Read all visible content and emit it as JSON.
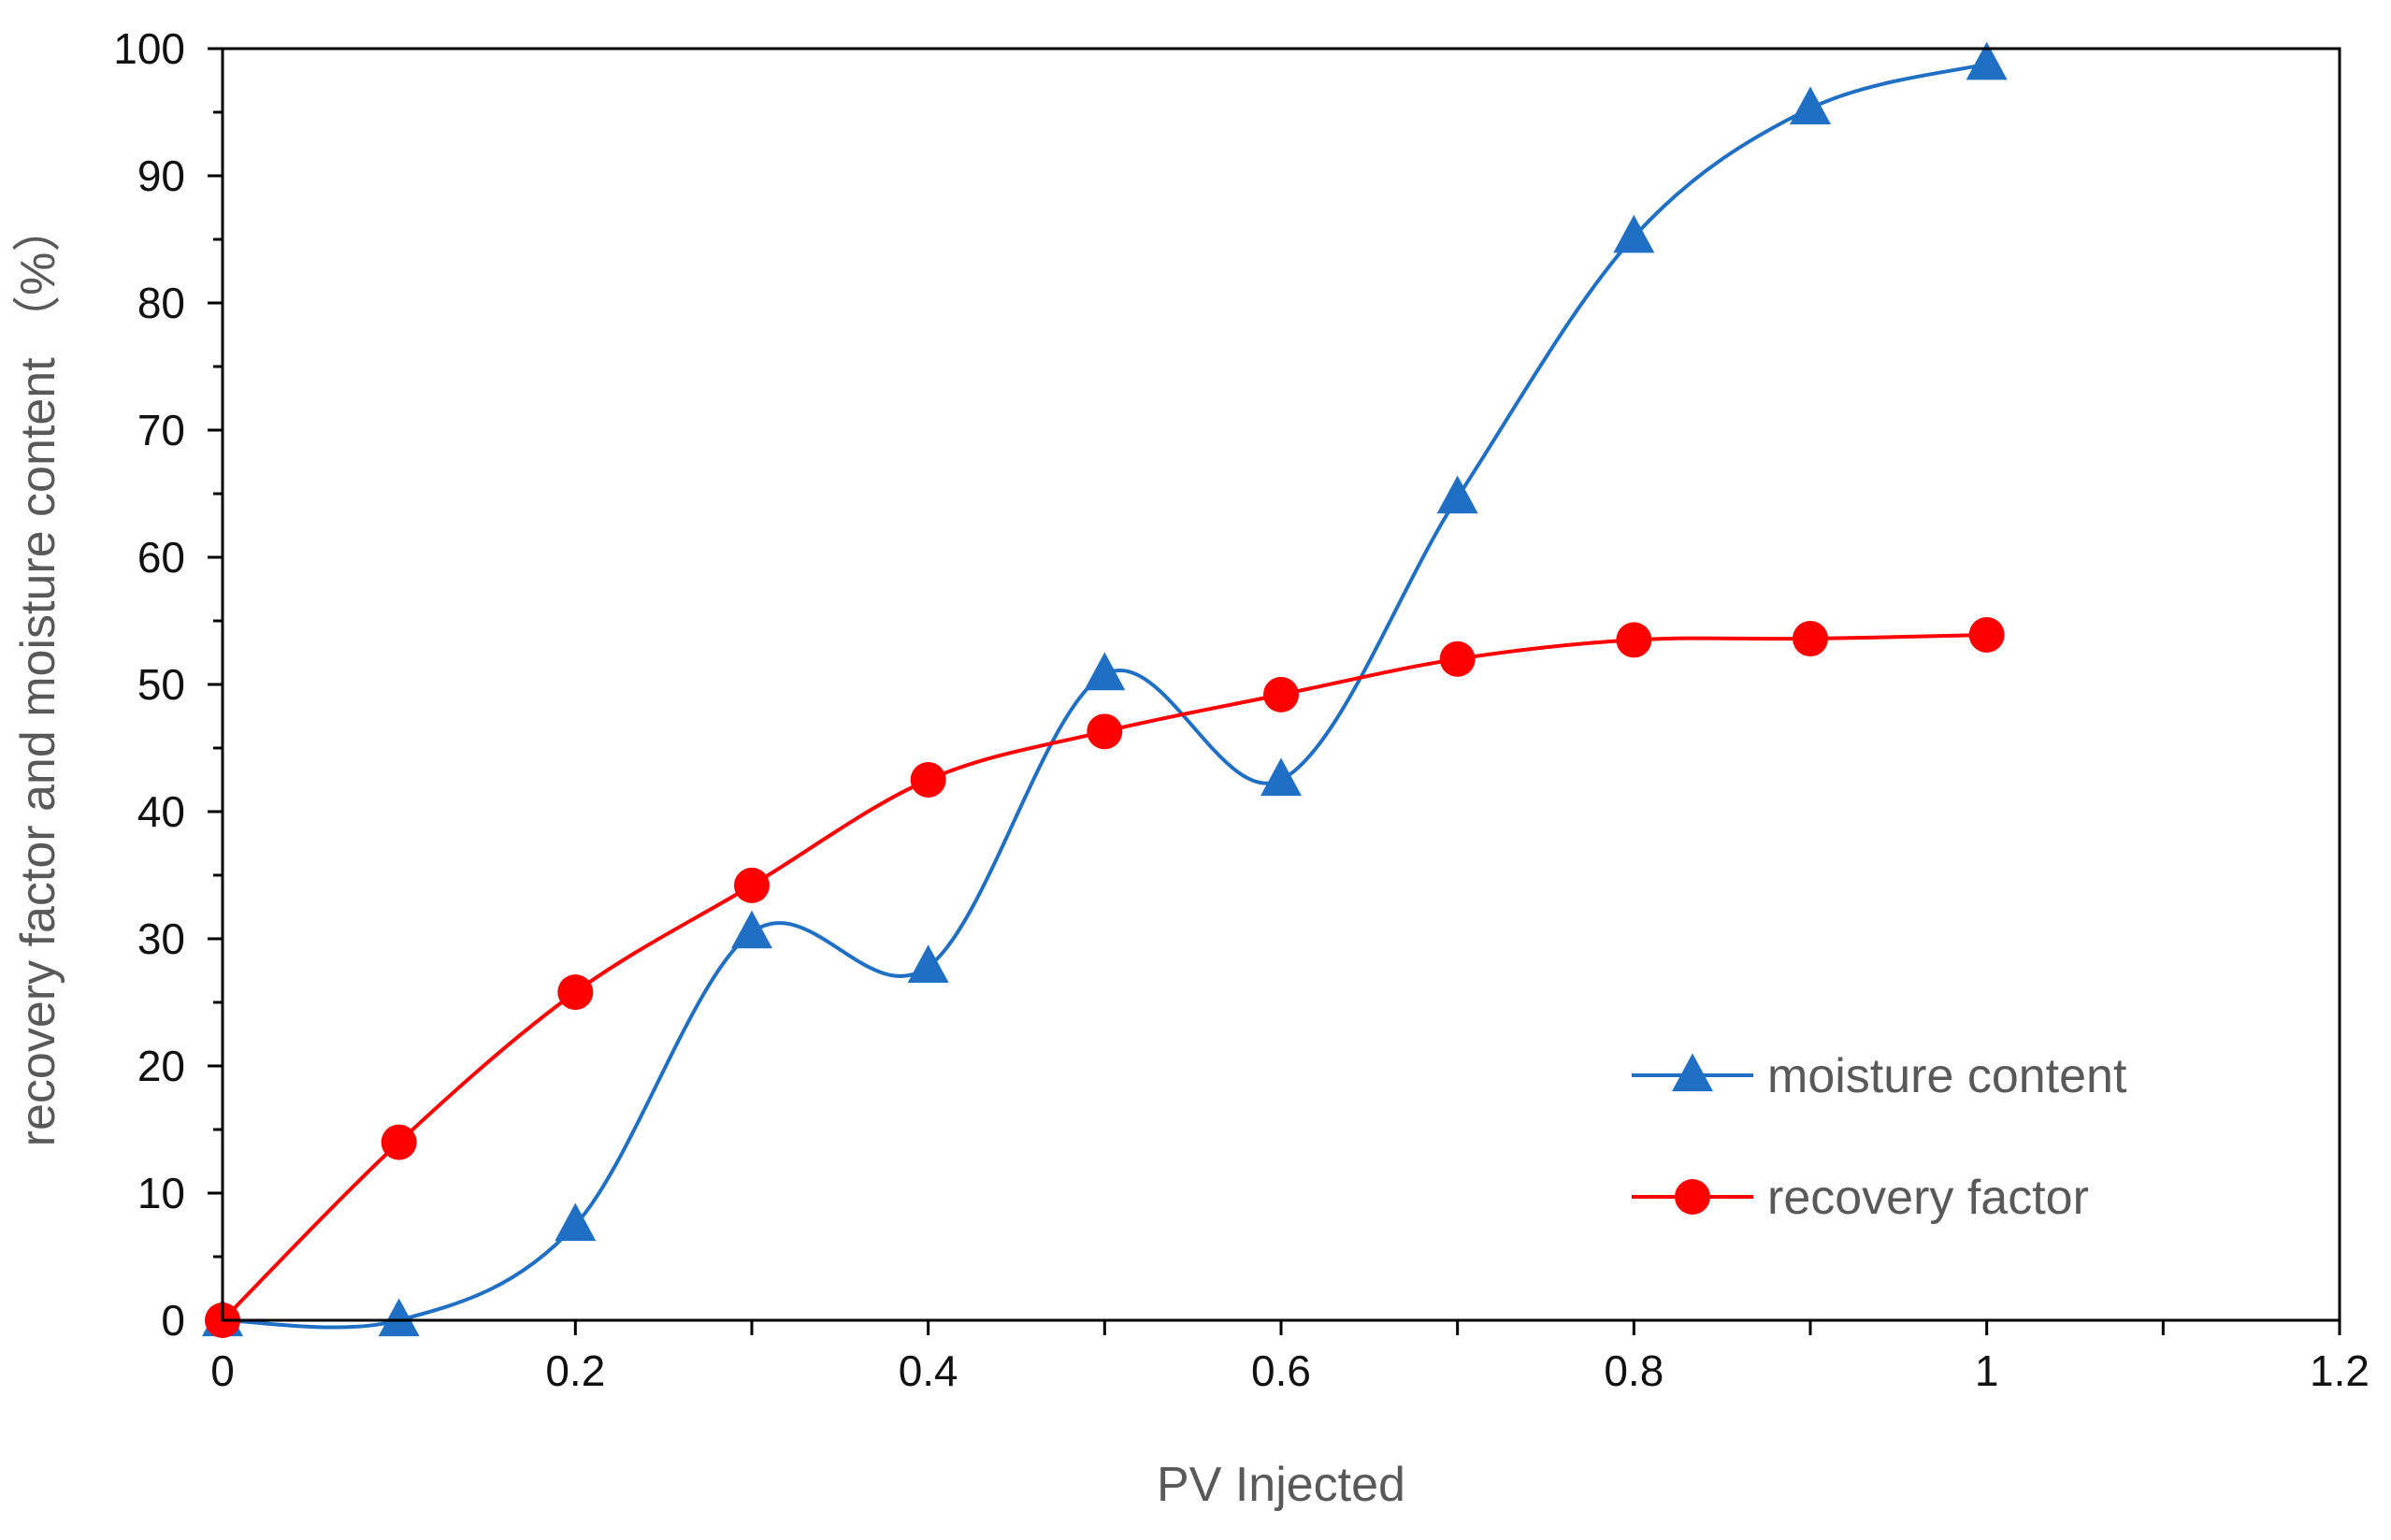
{
  "chart_data": {
    "type": "line",
    "title": "",
    "xlabel": "PV Injected",
    "ylabel": "recovery factor and moisture content （%）",
    "xlim": [
      0,
      1.2
    ],
    "ylim": [
      0,
      100
    ],
    "x_ticks": [
      "0",
      "0.2",
      "0.4",
      "0.6",
      "0.8",
      "1",
      "1.2"
    ],
    "y_ticks": [
      "0",
      "10",
      "20",
      "30",
      "40",
      "50",
      "60",
      "70",
      "80",
      "90",
      "100"
    ],
    "grid": false,
    "legend_position": "bottom-right",
    "series": [
      {
        "name": "moisture content",
        "marker": "triangle",
        "color": "#1F6FC5",
        "x": [
          0,
          0.1,
          0.2,
          0.3,
          0.4,
          0.5,
          0.6,
          0.7,
          0.8,
          0.9,
          1.0
        ],
        "values": [
          0,
          0,
          7.5,
          30.5,
          27.8,
          50.8,
          42.5,
          64.7,
          85.2,
          95.3,
          98.8
        ]
      },
      {
        "name": "recovery factor",
        "marker": "circle",
        "color": "#FF0000",
        "x": [
          0,
          0.1,
          0.2,
          0.3,
          0.4,
          0.5,
          0.6,
          0.7,
          0.8,
          0.9,
          1.0
        ],
        "values": [
          0,
          14,
          25.8,
          34.2,
          42.5,
          46.3,
          49.2,
          52,
          53.5,
          53.6,
          53.9
        ]
      }
    ]
  }
}
